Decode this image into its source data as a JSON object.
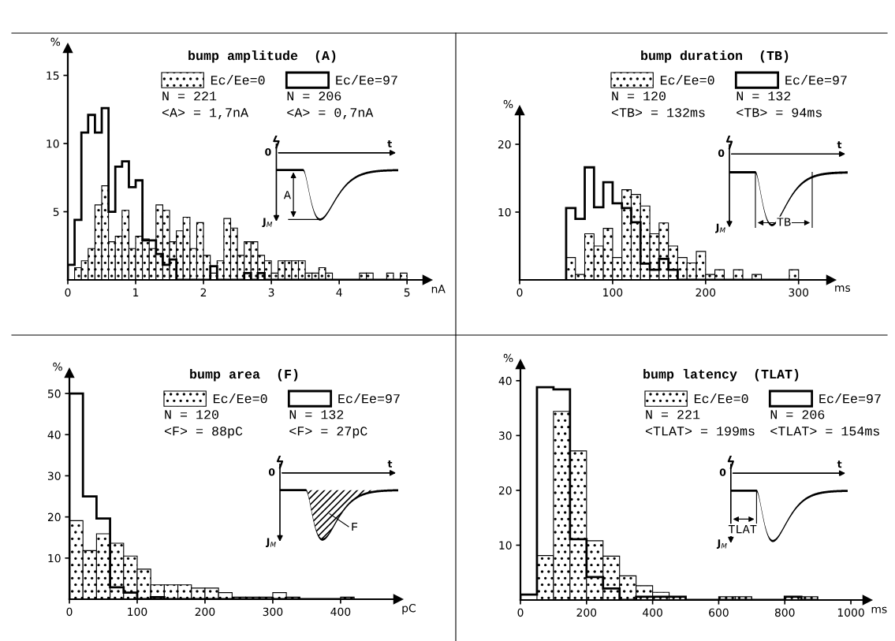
{
  "chart_data": [
    {
      "type": "histogram",
      "title": "bump amplitude  (A)",
      "xlabel": "nA",
      "ylabel": "%",
      "legend": "top right",
      "bins": [
        0,
        0.1,
        0.2,
        0.3,
        0.4,
        0.5,
        0.6,
        0.7,
        0.8,
        0.9,
        1.0,
        1.1,
        1.2,
        1.3,
        1.4,
        1.5,
        1.6,
        1.7,
        1.8,
        1.9,
        2.0,
        2.1,
        2.2,
        2.3,
        2.4,
        2.5,
        2.6,
        2.7,
        2.8,
        2.9,
        3.0,
        3.1,
        3.2,
        3.3,
        3.4,
        3.5,
        3.6,
        3.7,
        3.8,
        3.9,
        4.0,
        4.1,
        4.2,
        4.3,
        4.4,
        4.5,
        4.6,
        4.7,
        4.8,
        4.9,
        5.0
      ],
      "series": [
        {
          "name": "Ec/Ee=0",
          "color": "#000000",
          "values": [
            0,
            0.9,
            1.4,
            2.3,
            5.5,
            6.9,
            2.8,
            3.2,
            5.1,
            2.3,
            3.2,
            3.0,
            2.3,
            5.5,
            5.1,
            2.8,
            3.6,
            4.6,
            2.3,
            4.2,
            1.8,
            0.5,
            1.4,
            4.5,
            3.8,
            1.8,
            2.8,
            2.8,
            1.8,
            1.4,
            0.5,
            1.4,
            1.4,
            1.4,
            1.4,
            0.5,
            0.5,
            0.9,
            0.5,
            0,
            0,
            0,
            0,
            0.5,
            0.5,
            0,
            0,
            0.5,
            0,
            0.5
          ]
        },
        {
          "name": "Ec/Ee=97",
          "color": "#000000",
          "values": [
            1.1,
            4.4,
            10.8,
            12.1,
            10.8,
            12.6,
            5.0,
            8.3,
            8.7,
            6.8,
            7.3,
            2.9,
            2.9,
            1.9,
            1.1,
            1.5,
            0,
            0,
            0,
            0,
            0,
            1.0,
            0,
            0,
            0,
            0,
            0.5,
            0,
            0.5,
            0,
            0,
            0,
            0,
            0,
            0,
            0,
            0,
            0,
            0,
            0,
            0,
            0,
            0,
            0,
            0,
            0,
            0,
            0,
            0,
            0
          ]
        }
      ],
      "xlim": [
        0,
        5.3
      ],
      "xticks": [
        0,
        1,
        2,
        3,
        4,
        5
      ],
      "ylim": [
        0,
        17
      ],
      "yticks": [
        5,
        10,
        15
      ],
      "annotations": [
        "N = 221",
        "N = 206",
        "<A> = 1,7nA",
        "<A> = 0,7nA",
        "0",
        "t",
        "J$_{M}$",
        "A"
      ]
    },
    {
      "type": "histogram",
      "title": "bump duration  (TB)",
      "xlabel": "ms",
      "ylabel": "%",
      "legend": "top right",
      "bins": [
        50,
        60,
        70,
        80,
        90,
        100,
        110,
        120,
        130,
        140,
        150,
        160,
        170,
        180,
        190,
        200,
        210,
        220,
        230,
        240,
        250,
        260,
        270,
        280,
        290,
        300
      ],
      "series": [
        {
          "name": "Ec/Ee=0",
          "color": "#000000",
          "values": [
            3.3,
            0.8,
            6.8,
            5.0,
            7.6,
            3.3,
            13.3,
            12.6,
            10.9,
            6.8,
            8.4,
            5.0,
            3.3,
            2.5,
            4.2,
            0.8,
            1.5,
            0,
            1.5,
            0,
            0.8,
            0,
            0,
            0,
            1.5
          ]
        },
        {
          "name": "Ec/Ee=97",
          "color": "#000000",
          "values": [
            10.6,
            9.0,
            16.6,
            10.7,
            14.4,
            11.3,
            10.6,
            8.5,
            2.4,
            1.5,
            3.1,
            1.5,
            0,
            0,
            0,
            0,
            0,
            0,
            0,
            0,
            0,
            0,
            0,
            0,
            0
          ]
        }
      ],
      "xlim": [
        0,
        335
      ],
      "xticks": [
        0,
        100,
        200,
        300
      ],
      "ylim": [
        0,
        25
      ],
      "yticks": [
        10,
        20
      ],
      "annotations": [
        "N = 120",
        "N = 132",
        "<TB> = 132ms",
        "<TB> = 94ms",
        "0",
        "t",
        "J$_{M}$",
        "TB"
      ]
    },
    {
      "type": "histogram",
      "title": "bump area  (F)",
      "xlabel": "pC",
      "ylabel": "%",
      "legend": "top right",
      "bins": [
        0,
        20,
        40,
        60,
        80,
        100,
        120,
        140,
        160,
        180,
        200,
        220,
        240,
        260,
        280,
        300,
        320,
        340,
        360,
        380,
        400,
        420
      ],
      "series": [
        {
          "name": "Ec/Ee=0",
          "color": "#000000",
          "values": [
            19.1,
            11.8,
            15.9,
            13.6,
            10.5,
            7.3,
            3.5,
            3.5,
            3.5,
            2.7,
            2.7,
            1.6,
            0.5,
            0.5,
            0.5,
            1.6,
            0.5,
            0,
            0,
            0,
            0.5
          ]
        },
        {
          "name": "Ec/Ee=97",
          "color": "#000000",
          "values": [
            50,
            25,
            19.6,
            2.9,
            1.6,
            0,
            0.5,
            0,
            0,
            0,
            0,
            0,
            0,
            0,
            0,
            0,
            0,
            0,
            0,
            0,
            0
          ]
        }
      ],
      "xlim": [
        0,
        485
      ],
      "xticks": [
        0,
        100,
        200,
        300,
        400
      ],
      "ylim": [
        0,
        55
      ],
      "yticks": [
        10,
        20,
        30,
        40,
        50
      ],
      "annotations": [
        "N = 120",
        "N = 132",
        "<F> = 88pC",
        "<F> = 27pC",
        "0",
        "t",
        "J$_{M}$",
        "F"
      ]
    },
    {
      "type": "histogram",
      "title": "bump latency  (TLAT)",
      "xlabel": "ms",
      "ylabel": "%",
      "legend": "top right",
      "bins": [
        0,
        50,
        100,
        150,
        200,
        250,
        300,
        350,
        400,
        450,
        500,
        550,
        600,
        650,
        700,
        750,
        800,
        850,
        900
      ],
      "series": [
        {
          "name": "Ec/Ee=0",
          "color": "#000000",
          "values": [
            0,
            8.1,
            34.4,
            27.2,
            10.8,
            8.0,
            4.4,
            2.6,
            1.4,
            0.6,
            0,
            0,
            0.6,
            0.6,
            0,
            0,
            0.6,
            0.6
          ]
        },
        {
          "name": "Ec/Ee=97",
          "color": "#000000",
          "values": [
            1.0,
            38.8,
            38.4,
            11.1,
            4.2,
            2.1,
            0,
            0.6,
            0.6,
            0.6,
            0,
            0,
            0,
            0,
            0,
            0,
            0.6,
            0
          ]
        }
      ],
      "xlim": [
        0,
        1050
      ],
      "xticks": [
        0,
        200,
        400,
        600,
        800,
        1000
      ],
      "ylim": [
        0,
        43
      ],
      "yticks": [
        10,
        20,
        30,
        40
      ],
      "annotations": [
        "N = 221",
        "N = 206",
        "<TLAT> = 199ms",
        "<TLAT> = 154ms",
        "0",
        "t",
        "J$_{M}$",
        "TLAT"
      ]
    }
  ]
}
